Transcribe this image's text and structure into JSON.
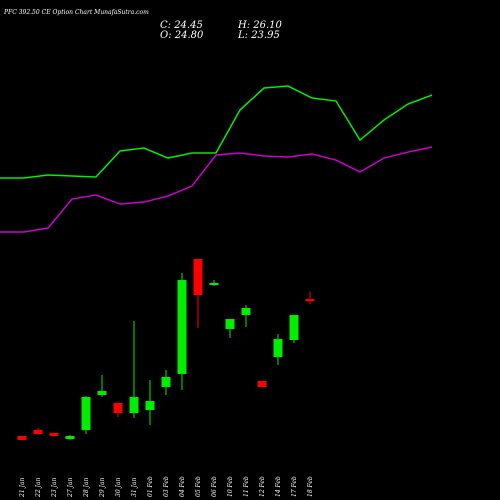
{
  "chart_data": {
    "type": "candlestick",
    "title": "PFC 392.50  CE Option  Chart MunafaSutra.com",
    "ohlc_labels": [
      "C: 24.45",
      "H: 26.10",
      "O: 24.80",
      "L: 23.95"
    ],
    "categories": [
      "21 Jan",
      "22 Jan",
      "23 Jan",
      "27 Jan",
      "28 Jan",
      "29 Jan",
      "30 Jan",
      "31 Jan",
      "01 Feb",
      "03 Feb",
      "04 Feb",
      "05 Feb",
      "06 Feb",
      "10 Feb",
      "11 Feb",
      "12 Feb",
      "14 Feb",
      "17 Feb",
      "18 Feb"
    ],
    "open": [
      2.15,
      3.14,
      2.65,
      1.65,
      3.14,
      8.93,
      7.61,
      5.95,
      6.45,
      10.25,
      12.41,
      31.43,
      27.13,
      19.85,
      22.16,
      11.25,
      15.22,
      18.03,
      24.8
    ],
    "high": [
      2.15,
      3.47,
      2.65,
      2.32,
      8.77,
      12.24,
      7.61,
      21.17,
      11.41,
      13.07,
      29.11,
      31.43,
      27.95,
      21.5,
      23.82,
      11.25,
      19.02,
      22.16,
      26.1
    ],
    "low": [
      1.49,
      2.32,
      2.15,
      1.49,
      2.48,
      8.6,
      5.29,
      5.13,
      3.97,
      8.93,
      9.76,
      20.01,
      26.96,
      18.36,
      20.18,
      10.25,
      13.89,
      17.53,
      23.95
    ],
    "close": [
      1.49,
      2.48,
      2.15,
      2.15,
      8.6,
      9.59,
      5.95,
      8.6,
      7.94,
      11.91,
      27.95,
      25.47,
      27.46,
      21.5,
      23.32,
      10.25,
      18.19,
      22.16,
      24.45
    ],
    "up_color": "#00ee00",
    "down_color": "#ff0000",
    "lines": [
      {
        "color": "#00ee00",
        "values": [
          44.82,
          44.82,
          45.32,
          45.15,
          44.99,
          49.29,
          49.79,
          48.13,
          48.96,
          48.96,
          56.07,
          59.71,
          60.04,
          58.06,
          57.56,
          51.11,
          54.42,
          57.06,
          58.55
        ]
      },
      {
        "color": "#cc00cc",
        "values": [
          35.89,
          35.89,
          36.55,
          41.35,
          42.01,
          40.52,
          40.85,
          41.85,
          43.5,
          48.63,
          48.96,
          48.46,
          48.3,
          48.79,
          47.8,
          45.82,
          48.13,
          49.12,
          49.95
        ]
      }
    ],
    "ylim": [
      0,
      66
    ]
  }
}
